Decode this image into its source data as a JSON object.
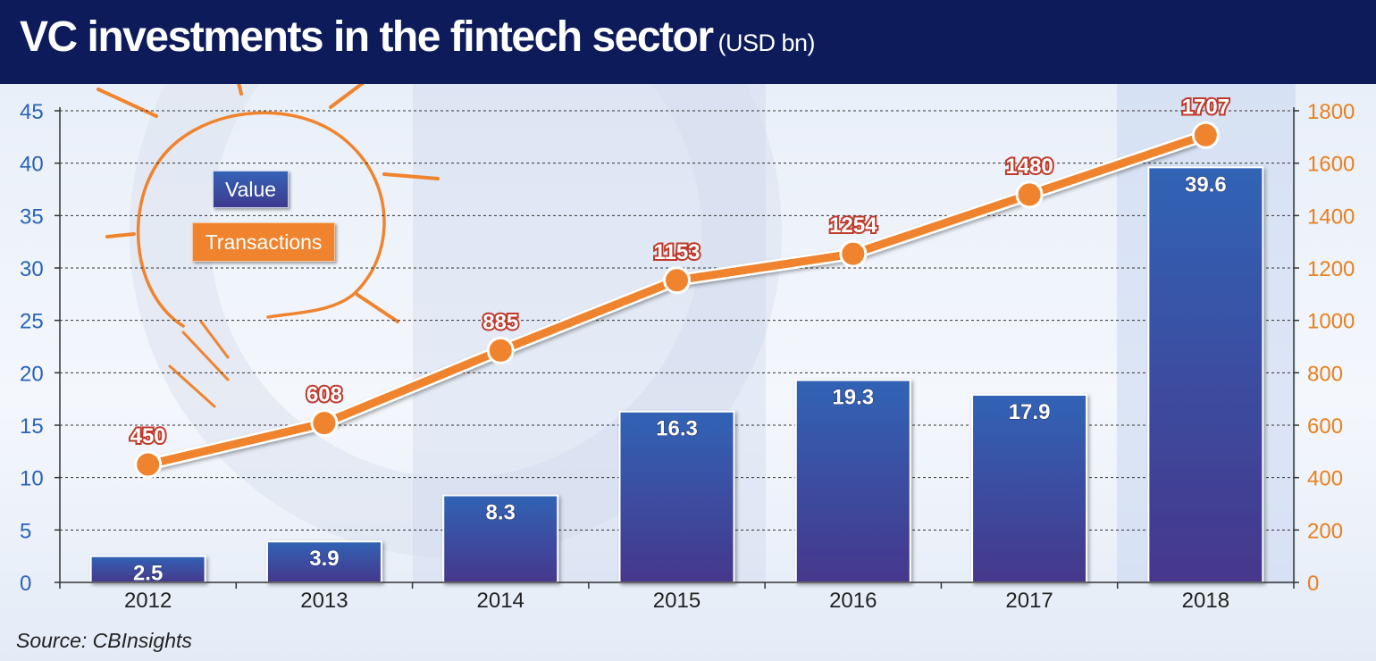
{
  "header": {
    "title": "VC investments in the fintech sector",
    "unit": "(USD bn)"
  },
  "legend": {
    "value_label": "Value",
    "transactions_label": "Transactions"
  },
  "source": "Source: CBInsights",
  "colors": {
    "header": "#0d1b5b",
    "bar_top": "#3163b5",
    "bar_bottom": "#46378c",
    "line": "#f0832d",
    "left_axis": "#2a63b8",
    "right_axis": "#e8801f"
  },
  "chart_data": {
    "type": "bar",
    "categories": [
      "2012",
      "2013",
      "2014",
      "2015",
      "2016",
      "2017",
      "2018"
    ],
    "series": [
      {
        "name": "Value",
        "type": "bar",
        "axis": "left",
        "values": [
          2.5,
          3.9,
          8.3,
          16.3,
          19.3,
          17.9,
          39.6
        ]
      },
      {
        "name": "Transactions",
        "type": "line",
        "axis": "right",
        "values": [
          450,
          608,
          885,
          1153,
          1254,
          1480,
          1707
        ]
      }
    ],
    "y_left": {
      "range": [
        0,
        45
      ],
      "ticks": [
        0,
        5,
        10,
        15,
        20,
        25,
        30,
        35,
        40,
        45
      ]
    },
    "y_right": {
      "range": [
        0,
        1800
      ],
      "ticks": [
        0,
        200,
        400,
        600,
        800,
        1000,
        1200,
        1400,
        1600,
        1800
      ]
    },
    "grid": true,
    "legend_position": "top-left"
  }
}
